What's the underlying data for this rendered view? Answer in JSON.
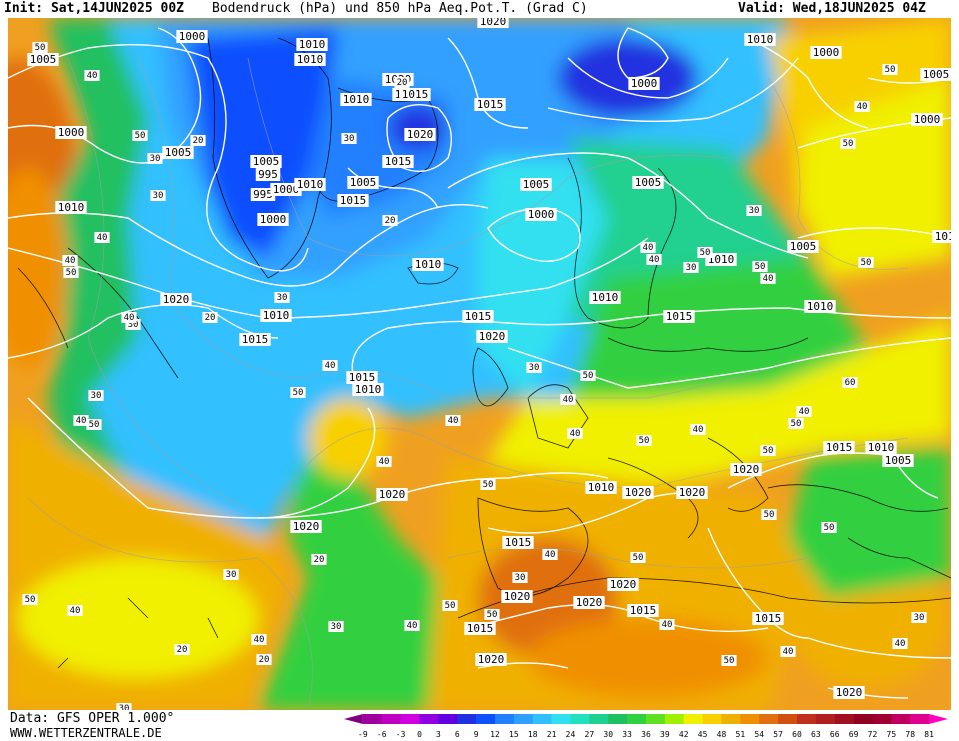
{
  "header": {
    "init": "Init: Sat,14JUN2025 00Z",
    "title": "Bodendruck (hPa) und 850 hPa Aeq.Pot.T. (Grad C)",
    "valid": "Valid: Wed,18JUN2025 04Z"
  },
  "footer": {
    "data_source": "Data: GFS OPER 1.000°",
    "website": "WWW.WETTERZENTRALE.DE"
  },
  "colorbar": {
    "ticks": [
      "-9",
      "-6",
      "-3",
      "0",
      "3",
      "6",
      "9",
      "12",
      "15",
      "18",
      "21",
      "24",
      "27",
      "30",
      "33",
      "36",
      "39",
      "42",
      "45",
      "48",
      "51",
      "54",
      "57",
      "60",
      "63",
      "66",
      "69",
      "72",
      "75",
      "78",
      "81"
    ],
    "colors": [
      "#800080",
      "#a000a0",
      "#c000c0",
      "#d000e0",
      "#9000e0",
      "#6000e0",
      "#2030e0",
      "#1050ff",
      "#2080ff",
      "#30a0ff",
      "#30c0ff",
      "#30e0f0",
      "#20e0c0",
      "#20d090",
      "#20c060",
      "#30d040",
      "#60e020",
      "#a0f000",
      "#f0f000",
      "#f8d000",
      "#f0b000",
      "#f09000",
      "#e07010",
      "#d05010",
      "#c03020",
      "#b02020",
      "#a01020",
      "#900020",
      "#a00030",
      "#c00060",
      "#e00090",
      "#ff00c0"
    ]
  },
  "isobar_labels": [
    "1005",
    "1000",
    "1010",
    "1020",
    "1010",
    "1010",
    "1020",
    "1015",
    "995",
    "1000",
    "1015",
    "1010",
    "1005",
    "1000",
    "1005",
    "1015",
    "1020",
    "1015",
    "1005",
    "995",
    "1000",
    "1010",
    "1000",
    "1005",
    "1015",
    "1005",
    "1000",
    "1010",
    "1005",
    "1010",
    "1010",
    "1010",
    "1020",
    "1010",
    "1015",
    "1015",
    "1020",
    "1015",
    "1015",
    "1010",
    "1010",
    "1020",
    "1020",
    "1015",
    "1010",
    "1020",
    "1020",
    "1020",
    "1020",
    "1020",
    "1020",
    "1015",
    "1015",
    "1020",
    "1015",
    "1020",
    "1015",
    "1010",
    "1005",
    "1000",
    "1005",
    "1000",
    "1010"
  ],
  "thetae_labels": [
    "50",
    "40",
    "50",
    "30",
    "20",
    "30",
    "40",
    "50",
    "40",
    "30",
    "20",
    "40",
    "50",
    "30",
    "40",
    "30",
    "50",
    "40",
    "40",
    "40",
    "50",
    "30",
    "40",
    "50",
    "40",
    "50",
    "40",
    "50",
    "50",
    "50",
    "40",
    "50",
    "60",
    "50",
    "40",
    "50",
    "30",
    "40",
    "50",
    "40",
    "30",
    "50",
    "40",
    "50",
    "50",
    "40",
    "20",
    "30",
    "30",
    "40",
    "20",
    "20",
    "30",
    "40",
    "50",
    "50",
    "30",
    "40",
    "50",
    "40",
    "50",
    "40",
    "30",
    "40",
    "20",
    "20",
    "30"
  ]
}
